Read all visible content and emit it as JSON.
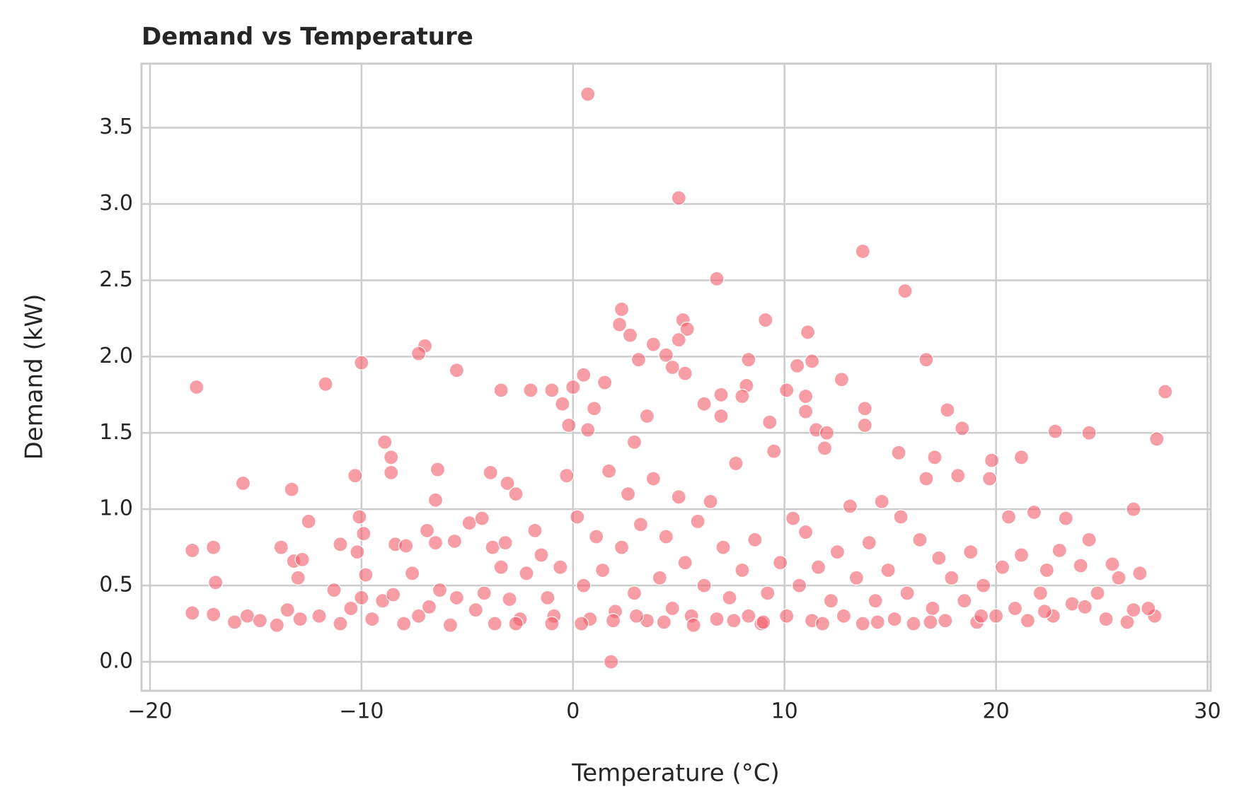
{
  "chart_data": {
    "type": "scatter",
    "title": "Demand vs Temperature",
    "x_label": "Temperature (°C)",
    "y_label": "Demand (kW)",
    "color": "#f25c6b",
    "grid": true,
    "xlim": [
      -20.4,
      30.15
    ],
    "ylim": [
      -0.19,
      3.92
    ],
    "xticks": [
      {
        "value": -20,
        "label": "−20"
      },
      {
        "value": -10,
        "label": "−10"
      },
      0,
      10,
      20,
      30
    ],
    "yticks": [
      {
        "value": 0,
        "label": "0.0"
      },
      0.5,
      {
        "value": 1,
        "label": "1.0"
      },
      1.5,
      {
        "value": 2,
        "label": "2.0"
      },
      2.5,
      {
        "value": 3,
        "label": "3.0"
      },
      3.5
    ],
    "x": [
      0.7,
      5,
      13.7,
      6.8,
      15.7,
      2.3,
      5.2,
      9.1,
      2.2,
      5.4,
      11.1,
      2.7,
      5,
      3.8,
      -7,
      -7.3,
      4.4,
      3.1,
      8.3,
      16.7,
      11.3,
      -10,
      10.6,
      4.7,
      -5.5,
      5.3,
      0.5,
      12.7,
      1.5,
      -11.7,
      -17.8,
      0,
      8.2,
      -3.4,
      -2,
      -1,
      10.1,
      28,
      7,
      8,
      11,
      6.2,
      -0.5,
      1,
      13.8,
      17.7,
      11,
      7,
      3.5,
      9.3,
      -0.2,
      13.8,
      0.7,
      18.4,
      11.5,
      12,
      22.8,
      24.4,
      27.6,
      -8.9,
      2.9,
      -8.6,
      15.4,
      17.1,
      21.2,
      19.8,
      -8.6,
      -3.9,
      -6.4,
      -15.6,
      -13.3,
      -10.3,
      -3.1,
      -2.7,
      -6.5,
      -12.5,
      -10.1,
      -9.9,
      -18,
      -17,
      -16.9,
      -13.8,
      -13.2,
      -12.8,
      -13,
      -11,
      -10.2,
      -9.8,
      -8.4,
      -7.9,
      -7.6,
      -6.9,
      -6.5,
      -5.6,
      -4.9,
      -4.3,
      -3.8,
      -3.2,
      -3.4,
      1.8,
      26.5,
      26.8,
      27.5,
      -18,
      -17,
      -16,
      -15.4,
      -14.8,
      -14,
      -13.5,
      -12.9,
      -12,
      -11.3,
      -11,
      -10.5,
      -10,
      -9.5,
      -9,
      -8.5,
      -8,
      -7.3,
      -6.8,
      -6.3,
      -5.8,
      -5.5,
      -4.6,
      -4.2,
      -3.7,
      -3,
      -2.5,
      -2.2,
      -1.8,
      -1.5,
      -1.2,
      -0.9,
      -0.6,
      -0.3,
      0.2,
      0.5,
      0.8,
      1.1,
      1.4,
      1.7,
      2,
      2.3,
      2.6,
      2.9,
      3.2,
      3.5,
      3.8,
      4.1,
      4.4,
      4.7,
      5,
      5.3,
      5.6,
      5.9,
      6.2,
      6.5,
      6.8,
      7.1,
      7.4,
      7.7,
      8,
      8.3,
      8.6,
      8.9,
      9.2,
      9.5,
      9.8,
      10.1,
      10.4,
      10.7,
      11,
      11.3,
      11.6,
      11.9,
      12.2,
      12.5,
      12.8,
      13.1,
      13.4,
      13.7,
      14,
      14.3,
      14.6,
      14.9,
      15.2,
      15.5,
      15.8,
      16.1,
      16.4,
      16.7,
      17,
      17.3,
      17.6,
      17.9,
      18.2,
      18.5,
      18.8,
      19.1,
      19.4,
      19.7,
      20,
      20.3,
      20.6,
      20.9,
      21.2,
      21.5,
      21.8,
      22.1,
      22.4,
      22.7,
      23,
      23.3,
      23.6,
      24,
      24.4,
      24.8,
      25.2,
      25.5,
      25.8,
      26.2,
      26.5,
      27.2,
      0.4,
      1.9,
      3,
      4.3,
      5.7,
      7.6,
      9,
      11.8,
      14.4,
      16.9,
      19.3,
      22.3,
      24.2,
      -1,
      -2.7
    ],
    "values": [
      3.72,
      3.04,
      2.69,
      2.51,
      2.43,
      2.31,
      2.24,
      2.24,
      2.21,
      2.18,
      2.16,
      2.14,
      2.11,
      2.08,
      2.07,
      2.02,
      2.01,
      1.98,
      1.98,
      1.98,
      1.97,
      1.96,
      1.94,
      1.93,
      1.91,
      1.89,
      1.88,
      1.85,
      1.83,
      1.82,
      1.8,
      1.8,
      1.81,
      1.78,
      1.78,
      1.78,
      1.78,
      1.77,
      1.75,
      1.74,
      1.74,
      1.69,
      1.69,
      1.66,
      1.66,
      1.65,
      1.64,
      1.61,
      1.61,
      1.57,
      1.55,
      1.55,
      1.52,
      1.53,
      1.52,
      1.5,
      1.51,
      1.5,
      1.46,
      1.44,
      1.44,
      1.34,
      1.37,
      1.34,
      1.34,
      1.32,
      1.24,
      1.24,
      1.26,
      1.17,
      1.13,
      1.22,
      1.17,
      1.1,
      1.06,
      0.92,
      0.95,
      0.84,
      0.73,
      0.75,
      0.52,
      0.75,
      0.66,
      0.67,
      0.55,
      0.77,
      0.72,
      0.57,
      0.77,
      0.76,
      0.58,
      0.86,
      0.78,
      0.79,
      0.91,
      0.94,
      0.75,
      0.78,
      0.62,
      0,
      1,
      0.58,
      0.3,
      0.32,
      0.31,
      0.26,
      0.3,
      0.27,
      0.24,
      0.34,
      0.28,
      0.3,
      0.47,
      0.25,
      0.35,
      0.42,
      0.28,
      0.4,
      0.44,
      0.25,
      0.3,
      0.36,
      0.47,
      0.24,
      0.42,
      0.34,
      0.45,
      0.25,
      0.41,
      0.28,
      0.58,
      0.86,
      0.7,
      0.42,
      0.3,
      0.62,
      1.22,
      0.95,
      0.5,
      0.28,
      0.82,
      0.6,
      1.25,
      0.33,
      0.75,
      1.1,
      0.45,
      0.9,
      0.27,
      1.2,
      0.55,
      0.82,
      0.35,
      1.08,
      0.65,
      0.3,
      0.92,
      0.5,
      1.05,
      0.28,
      0.75,
      0.42,
      1.3,
      0.6,
      0.3,
      0.8,
      0.25,
      0.45,
      1.38,
      0.65,
      0.3,
      0.94,
      0.5,
      0.85,
      0.27,
      0.62,
      1.4,
      0.4,
      0.72,
      0.3,
      1.02,
      0.55,
      0.25,
      0.78,
      0.4,
      1.05,
      0.6,
      0.28,
      0.95,
      0.45,
      0.25,
      0.8,
      1.2,
      0.35,
      0.68,
      0.27,
      0.55,
      1.22,
      0.4,
      0.72,
      0.26,
      0.5,
      1.2,
      0.3,
      0.62,
      0.95,
      0.35,
      0.7,
      0.27,
      0.98,
      0.45,
      0.6,
      0.3,
      0.73,
      0.94,
      0.38,
      0.63,
      0.8,
      0.45,
      0.28,
      0.64,
      0.55,
      0.26,
      0.34,
      0.35,
      0.25,
      0.27,
      0.3,
      0.26,
      0.24,
      0.27,
      0.26,
      0.25,
      0.26,
      0.26,
      0.3,
      0.33,
      0.36,
      0.25,
      0.25
    ]
  }
}
